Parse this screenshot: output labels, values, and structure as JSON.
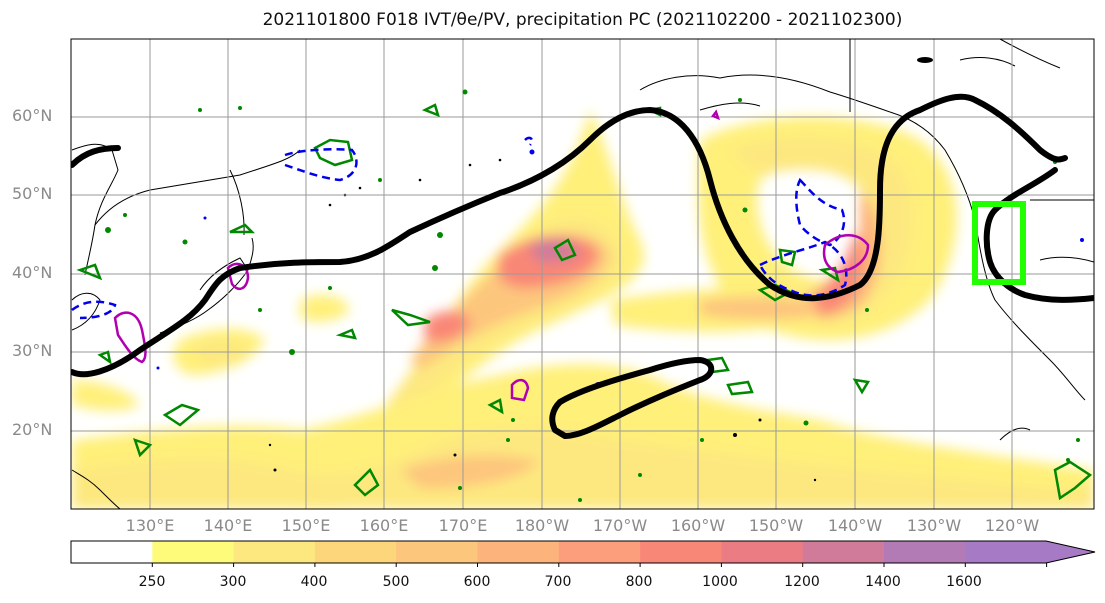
{
  "title": "2021101800 F018 IVT/θe/PV, precipitation PC (2021102200 - 2021102300)",
  "lat_labels": [
    "60°N",
    "50°N",
    "40°N",
    "30°N",
    "20°N"
  ],
  "lon_labels": [
    "130°E",
    "140°E",
    "150°E",
    "160°E",
    "170°E",
    "180°W",
    "170°W",
    "160°W",
    "150°W",
    "140°W",
    "130°W",
    "120°W"
  ],
  "colorbar": {
    "ticks": [
      "250",
      "300",
      "400",
      "500",
      "600",
      "700",
      "800",
      "1000",
      "1200",
      "1400",
      "1600"
    ],
    "colors": [
      "#ffffff",
      "#fffb7a",
      "#fde87f",
      "#fdd57a",
      "#fdc67d",
      "#fdb37c",
      "#fc9d7c",
      "#f98777",
      "#ec7c84",
      "#d07b9a",
      "#b27bb6",
      "#a67ac5"
    ]
  },
  "colors": {
    "jet_contour": "#000000",
    "dashed_contour": "#0000ee",
    "green_contour": "#008800",
    "magenta_contour": "#b000b0",
    "target_box": "#22ff00"
  }
}
